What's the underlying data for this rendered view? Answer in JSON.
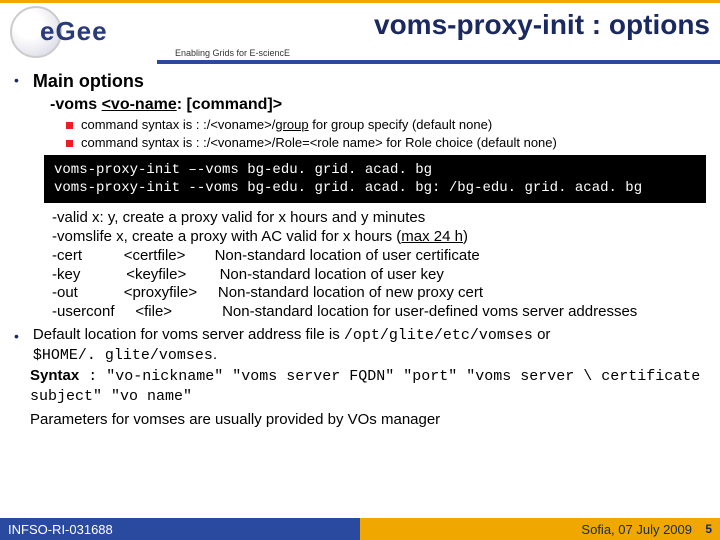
{
  "header": {
    "logo_text": "eGee",
    "title": "voms-proxy-init : options",
    "subtitle": "Enabling Grids for E-sciencE"
  },
  "main": {
    "main_options_label": "Main options",
    "voms_option": "-voms",
    "voms_arg": "<vo-name",
    "voms_rest": ": [command]>",
    "cmd_syntax_prefix": "command syntax is : :/<voname>/",
    "cmd_group": "group",
    "cmd_group_suffix": " for group specify (default none)",
    "cmd_role_line": "command syntax is : :/<voname>/Role=<role name> for Role choice (default none)",
    "code_line1": "voms-proxy-init –-voms bg-edu. grid. acad. bg",
    "code_line2": "voms-proxy-init --voms bg-edu. grid. acad. bg: /bg-edu. grid. acad. bg",
    "valid_line": "-valid x: y, create a proxy valid for x hours and y minutes",
    "vomslife_pre": "-vomslife x, create a proxy with AC valid for x hours (",
    "vomslife_u": "max 24 h",
    "vomslife_post": ")",
    "cert_opt": "-cert",
    "cert_arg": "<certfile>",
    "cert_desc": "Non-standard location of user certificate",
    "key_opt": "-key",
    "key_arg": "<keyfile>",
    "key_desc": "Non-standard location of user key",
    "out_opt": "-out",
    "out_arg": "<proxyfile>",
    "out_desc": "Non-standard location of new proxy cert",
    "userconf_opt": "-userconf",
    "userconf_arg": "<file>",
    "userconf_desc": "Non-standard location for user-defined voms server addresses",
    "default_pre": "Default location for voms server address file is ",
    "default_path1": "/opt/glite/etc/vomses",
    "default_or": " or ",
    "default_path2": "$HOME/. glite/vomses",
    "default_dot": ".",
    "syntax_label": "Syntax",
    "syntax_body": " : \"vo-nickname\" \"voms server FQDN\" \"port\" \"voms server \\ certificate subject\" \"vo name\"",
    "params_line": "Parameters for vomses are usually provided by VOs manager"
  },
  "footer": {
    "left": "INFSO-RI-031688",
    "right": "Sofia, 07 July 2009",
    "page": "5"
  }
}
